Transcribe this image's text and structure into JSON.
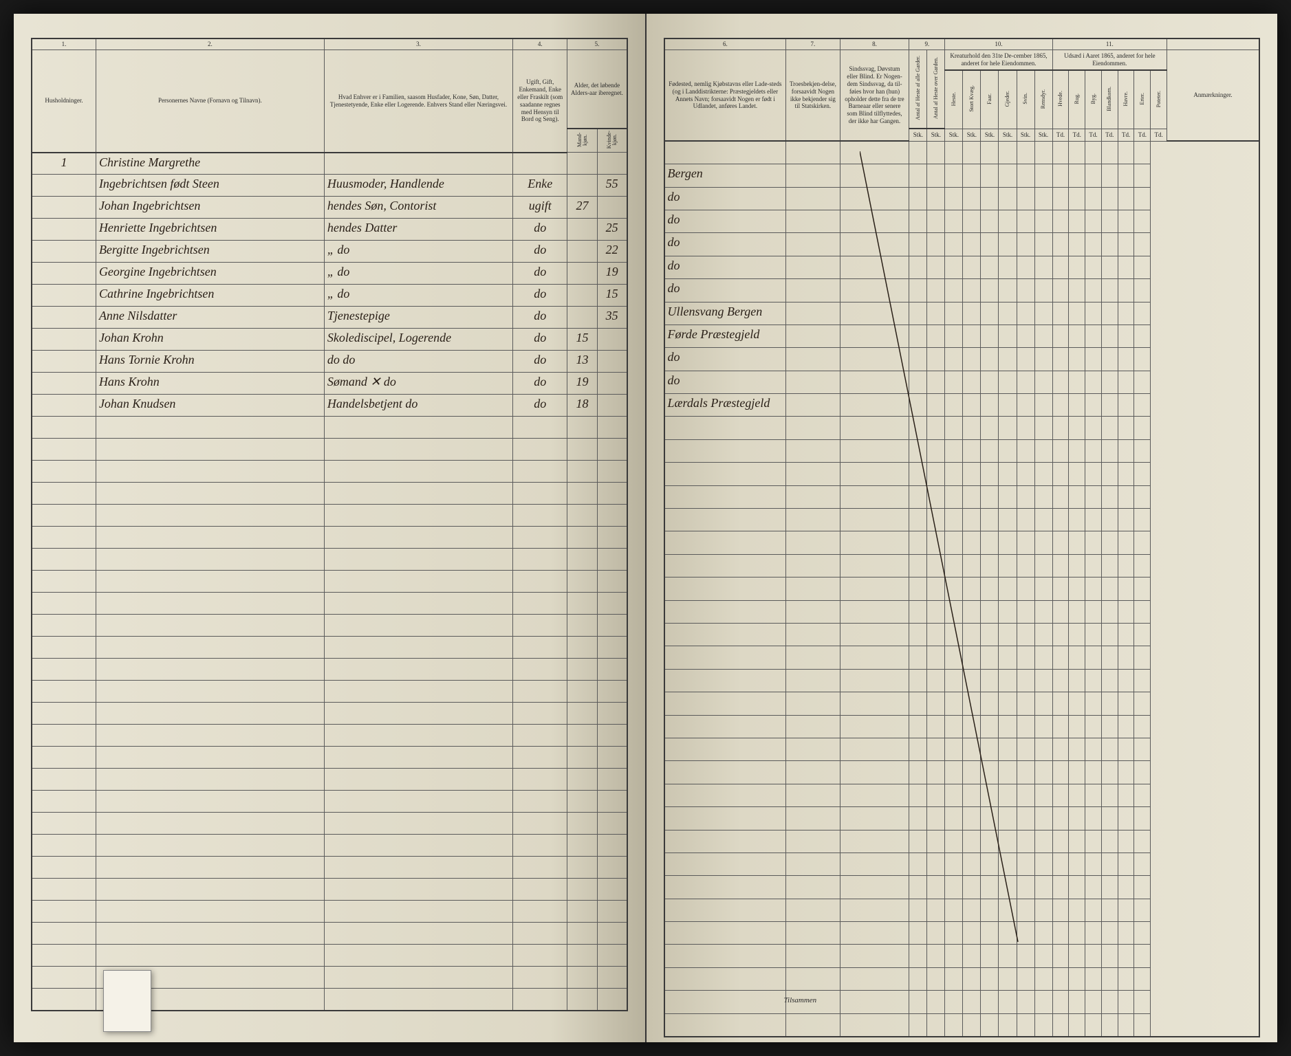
{
  "document": {
    "type": "census_register",
    "year": "1865",
    "language": "Norwegian"
  },
  "columns_left": {
    "c1": {
      "num": "1.",
      "label": "Husholdninger."
    },
    "c2": {
      "num": "2.",
      "label": "Personernes Navne (Fornavn og Tilnavn)."
    },
    "c3": {
      "num": "3.",
      "label": "Hvad Enhver er i Familien, saasom Husfader, Kone, Søn, Datter, Tjenestetyende, Enke eller Logerende. Enhvers Stand eller Næringsvei."
    },
    "c4": {
      "num": "4.",
      "label": "Ugift, Gift, Enkemand, Enke eller Fraskilt (som saadanne regnes med Hensyn til Bord og Seng)."
    },
    "c5": {
      "num": "5.",
      "label": "Alder, det løbende Alders-aar iberegnet.",
      "sub_m": "Mand-kjøn.",
      "sub_f": "Kvinde-kjøn."
    }
  },
  "columns_right": {
    "c6": {
      "num": "6.",
      "label": "Fødested, nemlig Kjøbstavns eller Lade-steds (og i Landdistrikterne: Præstegjeldets eller Annets Navn; forsaavidt Nogen er født i Udlandet, anføres Landet."
    },
    "c7": {
      "num": "7.",
      "label": "Troesbekjen-delse, forsaavidt Nogen ikke bekjender sig til Statskirken."
    },
    "c8": {
      "num": "8.",
      "label": "Sindssvag, Døvstum eller Blind. Er Nogen-dem Sindssvag, da til-føies hvor han (hun) opholder dette fra de tre Barneaar eller senere som Blind tilflyttedes, der ikke har Gangen."
    },
    "c9": {
      "num": "9.",
      "sub1": "Antal af Heste af alle Garder.",
      "sub2": "Antal af Heste over Garden."
    },
    "c10": {
      "num": "10.",
      "label": "Kreaturhold den 31te De-cember 1865, anderet for hele Eiendommen.",
      "subs": [
        "Heste.",
        "Stort Kvæg.",
        "Faar.",
        "Gjeder.",
        "Svin.",
        "Rensdyr."
      ]
    },
    "c11": {
      "num": "11.",
      "label": "Udsæd i Aaret 1865, anderet for hele Eiendommen.",
      "subs": [
        "Hvede.",
        "Rug.",
        "Byg.",
        "Blandkorn.",
        "Havre.",
        "Erter.",
        "Poteter."
      ]
    },
    "c12": {
      "label": "Anmærkninger."
    }
  },
  "sub_row": {
    "stk": "Stk.",
    "td": "Td."
  },
  "rows": [
    {
      "hh": "1",
      "name": "Christine Margrethe",
      "rel": "",
      "stat": "",
      "m": "",
      "f": "",
      "birth": "",
      "faith": ""
    },
    {
      "hh": "",
      "name": "Ingebrichtsen født Steen",
      "rel": "Huusmoder, Handlende",
      "stat": "Enke",
      "m": "",
      "f": "55",
      "birth": "Bergen",
      "faith": ""
    },
    {
      "hh": "",
      "name": "Johan Ingebrichtsen",
      "rel": "hendes Søn, Contorist",
      "stat": "ugift",
      "m": "27",
      "f": "",
      "birth": "do",
      "faith": ""
    },
    {
      "hh": "",
      "name": "Henriette Ingebrichtsen",
      "rel": "hendes Datter",
      "stat": "do",
      "m": "",
      "f": "25",
      "birth": "do",
      "faith": ""
    },
    {
      "hh": "",
      "name": "Bergitte Ingebrichtsen",
      "rel": "„        do",
      "stat": "do",
      "m": "",
      "f": "22",
      "birth": "do",
      "faith": ""
    },
    {
      "hh": "",
      "name": "Georgine Ingebrichtsen",
      "rel": "„        do",
      "stat": "do",
      "m": "",
      "f": "19",
      "birth": "do",
      "faith": ""
    },
    {
      "hh": "",
      "name": "Cathrine Ingebrichtsen",
      "rel": "„        do",
      "stat": "do",
      "m": "",
      "f": "15",
      "birth": "do",
      "faith": ""
    },
    {
      "hh": "",
      "name": "Anne Nilsdatter",
      "rel": "Tjenestepige",
      "stat": "do",
      "m": "",
      "f": "35",
      "birth": "Ullensvang Bergen",
      "faith": ""
    },
    {
      "hh": "",
      "name": "Johan Krohn",
      "rel": "Skolediscipel, Logerende",
      "stat": "do",
      "m": "15",
      "f": "",
      "birth": "Førde Præstegjeld",
      "faith": ""
    },
    {
      "hh": "",
      "name": "Hans Tornie Krohn",
      "rel": "do        do",
      "stat": "do",
      "m": "13",
      "f": "",
      "birth": "do",
      "faith": ""
    },
    {
      "hh": "",
      "name": "Hans Krohn",
      "rel": "Sømand     ✕     do",
      "stat": "do",
      "m": "19",
      "f": "",
      "birth": "do",
      "faith": ""
    },
    {
      "hh": "",
      "name": "Johan Knudsen",
      "rel": "Handelsbetjent     do",
      "stat": "do",
      "m": "18",
      "f": "",
      "birth": "Lærdals Præstegjeld",
      "faith": ""
    }
  ],
  "footer": {
    "tilsammen": "Tilsammen"
  },
  "empty_rows": 27,
  "colors": {
    "paper": "#ddd8c5",
    "ink": "#2a2018",
    "border": "#3a3a3a"
  }
}
